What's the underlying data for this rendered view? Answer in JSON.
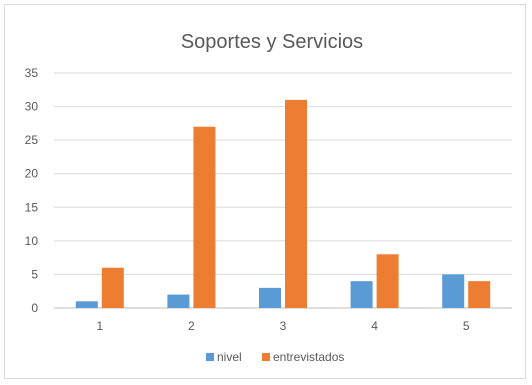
{
  "chart_data": {
    "type": "bar",
    "title": "Soportes y Servicios",
    "categories": [
      "1",
      "2",
      "3",
      "4",
      "5"
    ],
    "series": [
      {
        "name": "nivel",
        "values": [
          1,
          2,
          3,
          4,
          5
        ],
        "color": "#5B9BD5"
      },
      {
        "name": "entrevistados",
        "values": [
          6,
          27,
          31,
          8,
          4
        ],
        "color": "#ED7D31"
      }
    ],
    "y_ticks": [
      "0",
      "5",
      "10",
      "15",
      "20",
      "25",
      "30",
      "35"
    ],
    "ylim": [
      0,
      35
    ],
    "grid": true,
    "legend": "bottom"
  }
}
